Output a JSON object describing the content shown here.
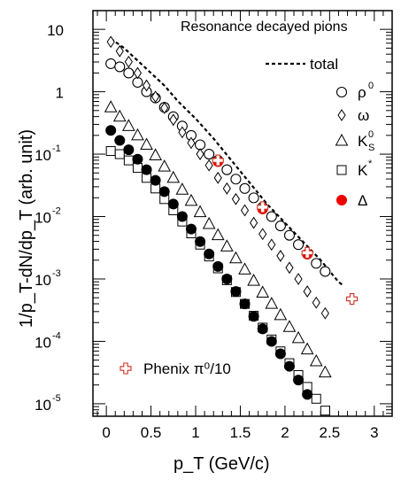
{
  "chart_data": {
    "type": "scatter",
    "title": "Resonance decayed pions",
    "xlabel": "p_T (GeV/c)",
    "ylabel": "1/p_T-dN/dp_T (arb. unit)",
    "xlim": [
      -0.15,
      3.2
    ],
    "ylog": true,
    "ylim_log10": [
      -5.2,
      1.3
    ],
    "x_ticks": [
      "0",
      "0.5",
      "1",
      "1.5",
      "2",
      "2.5",
      "3"
    ],
    "x_tick_values": [
      0,
      0.5,
      1,
      1.5,
      2,
      2.5,
      3
    ],
    "y_ticks": [
      {
        "value": 1,
        "base": "10",
        "exp": ""
      },
      {
        "value": 0,
        "base": "1",
        "exp": ""
      },
      {
        "value": -1,
        "base": "10",
        "exp": "-1"
      },
      {
        "value": -2,
        "base": "10",
        "exp": "-2"
      },
      {
        "value": -3,
        "base": "10",
        "exp": "-3"
      },
      {
        "value": -4,
        "base": "10",
        "exp": "-4"
      },
      {
        "value": -5,
        "base": "10",
        "exp": "-5"
      }
    ],
    "legend_placement": "top-right",
    "phenix_label": "Phenix π⁰/10",
    "series": [
      {
        "name": "total",
        "legend": "total",
        "marker": "dashed-line",
        "color": "#000000",
        "x": [
          0.05,
          0.2,
          0.35,
          0.5,
          0.65,
          0.8,
          1.0,
          1.2,
          1.4,
          1.6,
          1.8,
          2.0,
          2.2,
          2.4,
          2.6,
          2.65
        ],
        "log10y": [
          0.85,
          0.7,
          0.5,
          0.3,
          0.1,
          -0.15,
          -0.43,
          -0.75,
          -1.1,
          -1.45,
          -1.8,
          -2.1,
          -2.4,
          -2.7,
          -3.05,
          -3.1
        ]
      },
      {
        "name": "rho0",
        "legend": "ρ",
        "legend_sup": "0",
        "marker": "open-circle",
        "color": "#000000",
        "x": [
          0.05,
          0.15,
          0.25,
          0.35,
          0.45,
          0.55,
          0.65,
          0.75,
          0.85,
          0.95,
          1.05,
          1.15,
          1.25,
          1.35,
          1.45,
          1.55,
          1.65,
          1.75,
          1.85,
          1.95,
          2.05,
          2.15,
          2.25,
          2.35,
          2.45
        ],
        "log10y": [
          0.45,
          0.4,
          0.3,
          0.15,
          0.0,
          -0.1,
          -0.25,
          -0.4,
          -0.55,
          -0.7,
          -0.85,
          -1.0,
          -1.1,
          -1.25,
          -1.4,
          -1.55,
          -1.7,
          -1.85,
          -2.0,
          -2.15,
          -2.3,
          -2.45,
          -2.6,
          -2.75,
          -2.88
        ]
      },
      {
        "name": "omega",
        "legend": "ω",
        "legend_sup": "",
        "marker": "open-diamond",
        "color": "#000000",
        "x": [
          0.05,
          0.15,
          0.25,
          0.35,
          0.45,
          0.55,
          0.65,
          0.75,
          0.85,
          0.95,
          1.05,
          1.15,
          1.25,
          1.35,
          1.45,
          1.55,
          1.65,
          1.75,
          1.85,
          1.95,
          2.05,
          2.15,
          2.25,
          2.35,
          2.45
        ],
        "log10y": [
          0.8,
          0.65,
          0.48,
          0.3,
          0.1,
          -0.08,
          -0.26,
          -0.45,
          -0.65,
          -0.82,
          -1.0,
          -1.18,
          -1.38,
          -1.55,
          -1.72,
          -1.9,
          -2.1,
          -2.28,
          -2.45,
          -2.63,
          -2.82,
          -3.0,
          -3.2,
          -3.38,
          -3.55
        ]
      },
      {
        "name": "KS0",
        "legend": "K",
        "legend_sup": "0",
        "legend_sub": "S",
        "marker": "open-triangle",
        "color": "#000000",
        "x": [
          0.05,
          0.15,
          0.25,
          0.35,
          0.45,
          0.55,
          0.65,
          0.75,
          0.85,
          0.95,
          1.05,
          1.15,
          1.25,
          1.35,
          1.45,
          1.55,
          1.65,
          1.75,
          1.85,
          1.95,
          2.05,
          2.15,
          2.25,
          2.35,
          2.45
        ],
        "log10y": [
          -0.25,
          -0.4,
          -0.55,
          -0.7,
          -0.85,
          -1.02,
          -1.2,
          -1.38,
          -1.57,
          -1.75,
          -1.93,
          -2.12,
          -2.3,
          -2.48,
          -2.67,
          -2.85,
          -3.03,
          -3.22,
          -3.4,
          -3.58,
          -3.77,
          -3.95,
          -4.13,
          -4.32,
          -4.5
        ]
      },
      {
        "name": "Kstar",
        "legend": "K",
        "legend_sup": "*",
        "marker": "open-square",
        "color": "#000000",
        "x": [
          0.05,
          0.15,
          0.25,
          0.35,
          0.45,
          0.55,
          0.65,
          0.75,
          0.85,
          0.95,
          1.05,
          1.15,
          1.25,
          1.35,
          1.45,
          1.55,
          1.65,
          1.75,
          1.85,
          1.95,
          2.05,
          2.15,
          2.25,
          2.35,
          2.45
        ],
        "log10y": [
          -0.95,
          -1.0,
          -1.1,
          -1.22,
          -1.38,
          -1.55,
          -1.72,
          -1.9,
          -2.08,
          -2.27,
          -2.45,
          -2.64,
          -2.83,
          -3.02,
          -3.21,
          -3.4,
          -3.59,
          -3.78,
          -3.97,
          -4.16,
          -4.35,
          -4.54,
          -4.73,
          -4.92,
          -5.11
        ]
      },
      {
        "name": "eta",
        "legend": "",
        "marker": "filled-circle",
        "color": "#000000",
        "x": [
          0.05,
          0.15,
          0.25,
          0.35,
          0.45,
          0.55,
          0.65,
          0.75,
          0.85,
          0.95,
          1.05,
          1.15,
          1.25,
          1.35,
          1.45,
          1.55,
          1.65,
          1.75,
          1.85,
          1.95,
          2.05,
          2.15,
          2.25
        ],
        "log10y": [
          -0.62,
          -0.78,
          -0.93,
          -1.08,
          -1.25,
          -1.42,
          -1.6,
          -1.8,
          -2.0,
          -2.2,
          -2.4,
          -2.6,
          -2.8,
          -3.0,
          -3.2,
          -3.4,
          -3.6,
          -3.8,
          -4.0,
          -4.2,
          -4.4,
          -4.62,
          -4.85
        ]
      },
      {
        "name": "Delta",
        "legend": "Δ",
        "legend_sup": "",
        "marker": "red-filled-circle",
        "color": "#ee0000",
        "x": [
          1.25,
          1.75,
          2.25
        ],
        "log10y": [
          -1.12,
          -1.88,
          -2.6
        ]
      },
      {
        "name": "Phenix",
        "legend": "",
        "marker": "red-open-cross",
        "color": "#d03020",
        "x": [
          1.25,
          1.75,
          2.25,
          2.75
        ],
        "log10y": [
          -1.1,
          -1.85,
          -2.58,
          -3.32
        ]
      }
    ]
  }
}
